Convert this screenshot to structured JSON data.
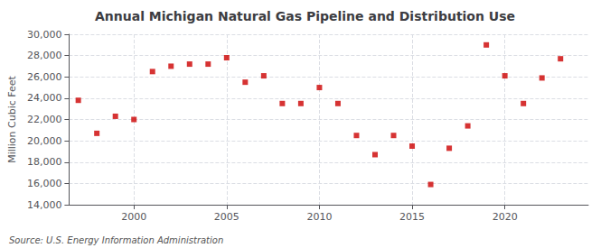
{
  "chart_data": {
    "type": "scatter",
    "title": "Annual Michigan Natural Gas Pipeline and Distribution Use",
    "ylabel": "Million Cubic Feet",
    "annotations": [
      "Source: U.S. Energy Information Administration"
    ],
    "x": [
      1997,
      1998,
      1999,
      2000,
      2001,
      2002,
      2003,
      2004,
      2005,
      2006,
      2007,
      2008,
      2009,
      2010,
      2011,
      2012,
      2013,
      2014,
      2015,
      2016,
      2017,
      2018,
      2019,
      2020,
      2021,
      2022,
      2023
    ],
    "values": [
      23800,
      20700,
      22300,
      22000,
      26500,
      27000,
      27200,
      27200,
      27800,
      25500,
      26100,
      23500,
      23500,
      25000,
      23500,
      20500,
      18700,
      20500,
      19500,
      15900,
      19300,
      21400,
      29000,
      26100,
      23500,
      25900,
      27700
    ],
    "color": "#cc0000",
    "marker": "square",
    "xlim": [
      1996.5,
      2024.5
    ],
    "xticks": [
      2000,
      2005,
      2010,
      2015,
      2020
    ],
    "ylim": [
      14000,
      30000
    ],
    "yticks": [
      {
        "value": 14000,
        "label": "14,000"
      },
      {
        "value": 16000,
        "label": "16,000"
      },
      {
        "value": 18000,
        "label": "18,000"
      },
      {
        "value": 20000,
        "label": "20,000"
      },
      {
        "value": 22000,
        "label": "22,000"
      },
      {
        "value": 24000,
        "label": "24,000"
      },
      {
        "value": 26000,
        "label": "26,000"
      },
      {
        "value": 28000,
        "label": "28,000"
      },
      {
        "value": 30000,
        "label": "30,000"
      }
    ],
    "grid": true
  }
}
